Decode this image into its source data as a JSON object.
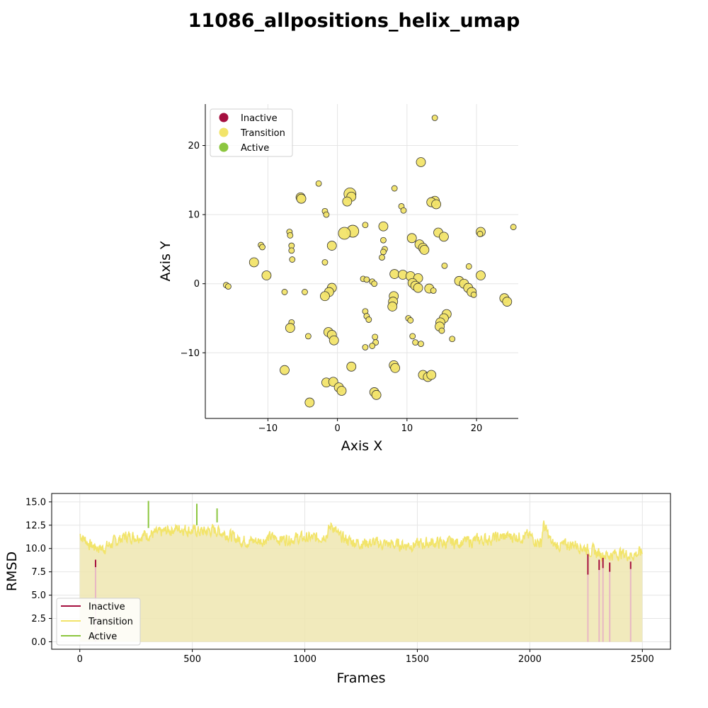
{
  "title": "11086_allpositions_helix_umap",
  "colors": {
    "inactive": "#a50f3f",
    "transition": "#f2e46a",
    "active": "#8cc63f",
    "grid": "#e5e5e5",
    "edge": "#333333",
    "fill_area": "#efe6b0"
  },
  "chart_data": [
    {
      "type": "scatter",
      "xlabel": "Axis X",
      "ylabel": "Axis Y",
      "xlim": [
        -19,
        26
      ],
      "ylim": [
        -19.5,
        26
      ],
      "xticks": [
        -10,
        0,
        10,
        20
      ],
      "yticks": [
        -10,
        0,
        10,
        20
      ],
      "xtick_labels": [
        "−10",
        "0",
        "10",
        "20"
      ],
      "ytick_labels": [
        "−10",
        "0",
        "10",
        "20"
      ],
      "grid": true,
      "legend_position": "upper-left",
      "legend": [
        {
          "label": "Inactive",
          "color": "#a50f3f"
        },
        {
          "label": "Transition",
          "color": "#f2e46a"
        },
        {
          "label": "Active",
          "color": "#8cc63f"
        }
      ],
      "points": [
        [
          14.0,
          24.0,
          1
        ],
        [
          12.0,
          17.6,
          2
        ],
        [
          -2.7,
          14.5,
          1
        ],
        [
          8.2,
          13.8,
          1
        ],
        [
          1.8,
          13.0,
          3
        ],
        [
          2.0,
          12.6,
          2
        ],
        [
          1.4,
          11.9,
          2
        ],
        [
          -5.3,
          12.5,
          2
        ],
        [
          -5.2,
          12.3,
          2
        ],
        [
          14.0,
          12.0,
          2
        ],
        [
          13.5,
          11.8,
          2
        ],
        [
          14.2,
          11.5,
          2
        ],
        [
          9.2,
          11.2,
          1
        ],
        [
          9.5,
          10.6,
          1
        ],
        [
          -1.8,
          10.5,
          1
        ],
        [
          -1.6,
          10.0,
          1
        ],
        [
          2.2,
          7.6,
          3
        ],
        [
          1.0,
          7.3,
          3
        ],
        [
          4.0,
          8.5,
          1
        ],
        [
          6.6,
          8.3,
          2
        ],
        [
          14.5,
          7.4,
          2
        ],
        [
          15.3,
          6.8,
          2
        ],
        [
          20.6,
          7.5,
          2
        ],
        [
          20.5,
          7.2,
          1
        ],
        [
          25.3,
          8.2,
          1
        ],
        [
          -6.9,
          7.5,
          1
        ],
        [
          -6.8,
          7.0,
          1
        ],
        [
          10.7,
          6.6,
          2
        ],
        [
          11.8,
          5.7,
          2
        ],
        [
          12.3,
          5.2,
          2
        ],
        [
          12.5,
          4.9,
          2
        ],
        [
          6.6,
          6.3,
          1
        ],
        [
          6.8,
          5.0,
          1
        ],
        [
          6.6,
          4.6,
          1
        ],
        [
          6.4,
          3.8,
          1
        ],
        [
          -0.8,
          5.5,
          2
        ],
        [
          -11.0,
          5.6,
          1
        ],
        [
          -10.8,
          5.3,
          1
        ],
        [
          -6.6,
          5.5,
          1
        ],
        [
          -6.6,
          4.8,
          1
        ],
        [
          -6.5,
          3.5,
          1
        ],
        [
          -1.8,
          3.1,
          1
        ],
        [
          -12.0,
          3.1,
          2
        ],
        [
          15.4,
          2.6,
          1
        ],
        [
          18.9,
          2.5,
          1
        ],
        [
          -10.2,
          1.2,
          2
        ],
        [
          8.2,
          1.4,
          2
        ],
        [
          9.4,
          1.3,
          2
        ],
        [
          10.5,
          1.1,
          2
        ],
        [
          11.6,
          0.8,
          2
        ],
        [
          20.6,
          1.2,
          2
        ],
        [
          3.7,
          0.7,
          1
        ],
        [
          4.2,
          0.6,
          1
        ],
        [
          5.0,
          0.3,
          1
        ],
        [
          5.3,
          0.0,
          1
        ],
        [
          10.8,
          0.1,
          2
        ],
        [
          11.2,
          -0.3,
          2
        ],
        [
          11.6,
          -0.6,
          2
        ],
        [
          17.5,
          0.4,
          2
        ],
        [
          18.2,
          0.0,
          2
        ],
        [
          18.8,
          -0.6,
          2
        ],
        [
          19.3,
          -1.2,
          2
        ],
        [
          19.6,
          -1.6,
          1
        ],
        [
          13.2,
          -0.7,
          2
        ],
        [
          13.8,
          -1.0,
          1
        ],
        [
          -16.0,
          -0.2,
          1
        ],
        [
          -15.7,
          -0.4,
          1
        ],
        [
          -7.6,
          -1.2,
          1
        ],
        [
          -4.7,
          -1.2,
          1
        ],
        [
          -0.8,
          -0.6,
          2
        ],
        [
          -1.2,
          -1.2,
          2
        ],
        [
          -1.8,
          -1.8,
          2
        ],
        [
          8.1,
          -1.8,
          2
        ],
        [
          8.0,
          -2.6,
          2
        ],
        [
          7.9,
          -3.3,
          2
        ],
        [
          24.0,
          -2.1,
          2
        ],
        [
          24.4,
          -2.6,
          2
        ],
        [
          15.7,
          -4.4,
          2
        ],
        [
          15.3,
          -5.0,
          2
        ],
        [
          14.8,
          -5.6,
          2
        ],
        [
          14.7,
          -6.2,
          2
        ],
        [
          15.0,
          -6.8,
          1
        ],
        [
          4.0,
          -4.0,
          1
        ],
        [
          4.2,
          -4.7,
          1
        ],
        [
          4.5,
          -5.2,
          1
        ],
        [
          10.2,
          -5.0,
          1
        ],
        [
          10.5,
          -5.3,
          1
        ],
        [
          -6.6,
          -5.6,
          1
        ],
        [
          -6.8,
          -6.4,
          2
        ],
        [
          -1.3,
          -7.0,
          2
        ],
        [
          -0.8,
          -7.4,
          2
        ],
        [
          -0.5,
          -8.2,
          2
        ],
        [
          -4.2,
          -7.6,
          1
        ],
        [
          10.8,
          -7.6,
          1
        ],
        [
          11.2,
          -8.5,
          1
        ],
        [
          12.0,
          -8.7,
          1
        ],
        [
          16.5,
          -8.0,
          1
        ],
        [
          5.4,
          -7.7,
          1
        ],
        [
          5.5,
          -8.5,
          1
        ],
        [
          5.0,
          -9.0,
          1
        ],
        [
          4.0,
          -9.2,
          1
        ],
        [
          8.1,
          -11.8,
          2
        ],
        [
          8.3,
          -12.2,
          2
        ],
        [
          2.0,
          -12.0,
          2
        ],
        [
          -7.6,
          -12.5,
          2
        ],
        [
          12.3,
          -13.2,
          2
        ],
        [
          13.0,
          -13.5,
          2
        ],
        [
          13.5,
          -13.2,
          2
        ],
        [
          -1.6,
          -14.3,
          2
        ],
        [
          -0.6,
          -14.2,
          2
        ],
        [
          0.2,
          -15.0,
          2
        ],
        [
          0.6,
          -15.5,
          2
        ],
        [
          5.3,
          -15.7,
          2
        ],
        [
          5.6,
          -16.1,
          2
        ],
        [
          -4.0,
          -17.2,
          2
        ]
      ]
    },
    {
      "type": "line",
      "xlabel": "Frames",
      "ylabel": "RMSD",
      "xlim": [
        -125,
        2625
      ],
      "ylim": [
        -0.8,
        15.9
      ],
      "xticks": [
        0,
        500,
        1000,
        1500,
        2000,
        2500
      ],
      "yticks": [
        0.0,
        2.5,
        5.0,
        7.5,
        10.0,
        12.5,
        15.0
      ],
      "ytick_labels": [
        "0.0",
        "2.5",
        "5.0",
        "7.5",
        "10.0",
        "12.5",
        "15.0"
      ],
      "grid": true,
      "legend_position": "lower-left",
      "legend": [
        {
          "label": "Inactive",
          "color": "#a50f3f"
        },
        {
          "label": "Transition",
          "color": "#f2e46a"
        },
        {
          "label": "Active",
          "color": "#8cc63f"
        }
      ],
      "baseline_x": [
        0,
        50,
        100,
        150,
        200,
        250,
        300,
        350,
        400,
        450,
        500,
        550,
        600,
        650,
        700,
        750,
        800,
        850,
        900,
        950,
        1000,
        1050,
        1100,
        1120,
        1150,
        1200,
        1250,
        1300,
        1350,
        1400,
        1450,
        1500,
        1550,
        1600,
        1650,
        1700,
        1750,
        1800,
        1850,
        1900,
        1950,
        2000,
        2050,
        2060,
        2100,
        2150,
        2200,
        2250,
        2300,
        2350,
        2400,
        2450,
        2500
      ],
      "baseline_y": [
        11.5,
        10.3,
        10.0,
        10.6,
        11.3,
        11.3,
        11.5,
        11.6,
        12.0,
        12.2,
        11.9,
        11.8,
        12.0,
        11.6,
        11.0,
        10.8,
        10.8,
        11.2,
        11.0,
        11.1,
        11.1,
        11.1,
        11.6,
        12.6,
        11.3,
        10.8,
        10.6,
        10.6,
        10.5,
        10.4,
        10.4,
        10.4,
        10.6,
        10.6,
        10.6,
        10.7,
        10.8,
        11.0,
        11.1,
        11.3,
        11.3,
        11.3,
        10.5,
        12.6,
        10.4,
        10.3,
        10.5,
        10.0,
        9.5,
        9.3,
        9.5,
        9.3,
        9.6
      ],
      "noise_amplitude": 0.55,
      "active_spikes": [
        {
          "frame": 305,
          "top": 15.1,
          "bottom": 12.2
        },
        {
          "frame": 520,
          "top": 14.8,
          "bottom": 12.5
        },
        {
          "frame": 610,
          "top": 14.3,
          "bottom": 12.8
        }
      ],
      "inactive_segments": [
        {
          "frame": 70,
          "top": 8.8,
          "bottom": 8.0
        },
        {
          "frame": 2258,
          "top": 9.4,
          "bottom": 7.2
        },
        {
          "frame": 2308,
          "top": 8.8,
          "bottom": 7.7
        },
        {
          "frame": 2325,
          "top": 9.0,
          "bottom": 7.9
        },
        {
          "frame": 2355,
          "top": 8.5,
          "bottom": 7.5
        },
        {
          "frame": 2448,
          "top": 8.6,
          "bottom": 7.8
        }
      ]
    }
  ]
}
